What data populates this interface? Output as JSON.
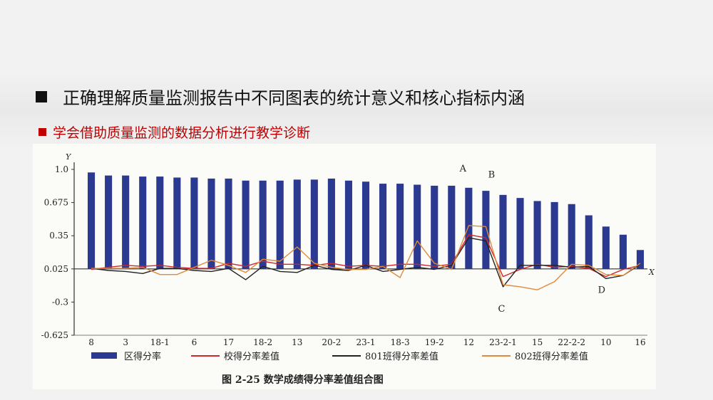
{
  "heading": "正确理解质量监测报告中不同图表的统计意义和核心指标内涵",
  "subheading": "学会借助质量监测的数据分析进行教学诊断",
  "colors": {
    "heading": "#111111",
    "subheading": "#c00000",
    "bar": "#2c3990",
    "school_line": "#d1262c",
    "class801_line": "#222222",
    "class802_line": "#e08a3c"
  },
  "chart_data": {
    "type": "bar",
    "title": "图 2-25   数学成绩得分率差值组合图",
    "xlabel": "X",
    "ylabel": "Y",
    "ylim": [
      -0.625,
      1.0
    ],
    "yticks": [
      "1.0",
      "0.675",
      "0.35",
      "0.025",
      "-0.3",
      "-0.625"
    ],
    "ytick_values": [
      1.0,
      0.675,
      0.35,
      0.025,
      -0.3,
      -0.625
    ],
    "categories": [
      "8",
      "",
      "3",
      "",
      "18-1",
      "",
      "6",
      "",
      "17",
      "",
      "18-2",
      "",
      "13",
      "",
      "20-2",
      "",
      "23-1",
      "",
      "18-3",
      "",
      "19-2",
      "",
      "12",
      "",
      "23-2-1",
      "",
      "15",
      "",
      "22-2-2",
      "",
      "10",
      "",
      "16"
    ],
    "series": [
      {
        "name": "区得分率",
        "type": "bar",
        "values": [
          0.97,
          0.94,
          0.94,
          0.93,
          0.93,
          0.92,
          0.92,
          0.91,
          0.91,
          0.89,
          0.89,
          0.89,
          0.9,
          0.9,
          0.91,
          0.89,
          0.88,
          0.86,
          0.86,
          0.85,
          0.84,
          0.84,
          0.82,
          0.79,
          0.75,
          0.72,
          0.69,
          0.68,
          0.66,
          0.55,
          0.44,
          0.36,
          0.21
        ]
      },
      {
        "name": "校得分率差值",
        "type": "line",
        "values": [
          0.02,
          0.04,
          0.06,
          0.05,
          0.06,
          0.04,
          0.03,
          0.03,
          0.08,
          0.05,
          0.1,
          0.07,
          0.07,
          0.06,
          0.08,
          0.05,
          0.06,
          0.05,
          0.07,
          0.07,
          0.05,
          0.07,
          0.36,
          0.33,
          -0.05,
          0.02,
          0.07,
          0.04,
          0.05,
          0.03,
          -0.05,
          0.02,
          0.06
        ]
      },
      {
        "name": "801班得分率差值",
        "type": "line",
        "values": [
          0.03,
          0.01,
          0.0,
          -0.02,
          0.03,
          0.03,
          0.01,
          0.0,
          0.03,
          -0.08,
          0.05,
          0.0,
          -0.01,
          0.06,
          0.02,
          0.01,
          0.06,
          0.0,
          0.02,
          0.04,
          0.02,
          0.06,
          0.33,
          0.3,
          -0.15,
          0.06,
          0.06,
          0.06,
          0.04,
          0.05,
          -0.07,
          -0.04,
          0.07
        ]
      },
      {
        "name": "802班得分率差值",
        "type": "line",
        "values": [
          0.03,
          0.03,
          0.03,
          0.04,
          -0.03,
          -0.03,
          0.04,
          0.11,
          0.06,
          -0.01,
          0.12,
          0.1,
          0.24,
          0.08,
          0.04,
          0.02,
          0.02,
          0.05,
          -0.06,
          0.3,
          0.08,
          0.02,
          0.45,
          0.44,
          -0.13,
          -0.15,
          -0.18,
          -0.1,
          0.07,
          0.06,
          -0.03,
          -0.04,
          0.08
        ]
      }
    ],
    "annotations": [
      {
        "text": "A",
        "index": 22
      },
      {
        "text": "B",
        "index": 23
      },
      {
        "text": "C",
        "index": 24
      },
      {
        "text": "D",
        "index": 30
      }
    ],
    "legend_position": "bottom"
  }
}
